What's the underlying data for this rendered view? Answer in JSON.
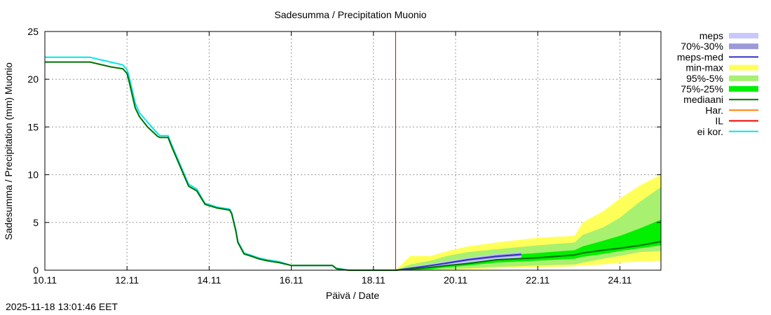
{
  "chart_data": {
    "type": "area",
    "title": "Sadesumma / Precipitation  Muonio",
    "xlabel": "Päivä / Date",
    "ylabel": "Sadesumma / Precipitation (mm)  Muonio",
    "ylim": [
      0,
      25
    ],
    "xlim": [
      0,
      15
    ],
    "yticks": [
      0,
      5,
      10,
      15,
      20,
      25
    ],
    "xticks": [
      {
        "x": 0,
        "label": "10.11"
      },
      {
        "x": 2,
        "label": "12.11"
      },
      {
        "x": 4,
        "label": "14.11"
      },
      {
        "x": 6,
        "label": "16.11"
      },
      {
        "x": 8,
        "label": "18.11"
      },
      {
        "x": 10,
        "label": "20.11"
      },
      {
        "x": 12,
        "label": "22.11"
      },
      {
        "x": 14,
        "label": "24.11"
      }
    ],
    "grid": true,
    "now_x": 8.54,
    "legend": [
      {
        "label": "meps",
        "color": "#c8c8ff",
        "style": "band"
      },
      {
        "label": "70%-30%",
        "color": "#9a9ad8",
        "style": "band"
      },
      {
        "label": "meps-med",
        "color": "#3030c0",
        "style": "line"
      },
      {
        "label": "min-max",
        "color": "#ffff5a",
        "style": "band"
      },
      {
        "label": "95%-5%",
        "color": "#a8f070",
        "style": "band"
      },
      {
        "label": "75%-25%",
        "color": "#00f000",
        "style": "band"
      },
      {
        "label": "mediaani",
        "color": "#007000",
        "style": "line"
      },
      {
        "label": "Har.",
        "color": "#ff8000",
        "style": "line"
      },
      {
        "label": "IL",
        "color": "#ee0000",
        "style": "line"
      },
      {
        "label": "ei kor.",
        "color": "#00e8e8",
        "style": "line"
      }
    ],
    "series": [
      {
        "name": "ei kor.",
        "color": "#00e8e8",
        "x": [
          0,
          1.1,
          1.3,
          1.6,
          1.9,
          2.0,
          2.05,
          2.2,
          2.3,
          2.5,
          2.75,
          2.8,
          3.0,
          3.1,
          3.3,
          3.5,
          3.7,
          3.9,
          4.2,
          4.5,
          4.55,
          4.65,
          4.7,
          4.85,
          5.0,
          5.2,
          5.4,
          5.7,
          6.0,
          7.0,
          7.1,
          7.4,
          8.54
        ],
        "y": [
          22.3,
          22.3,
          22.1,
          21.8,
          21.5,
          21.0,
          20.3,
          17.5,
          16.5,
          15.5,
          14.3,
          14.1,
          14.1,
          13.0,
          11.0,
          9.0,
          8.5,
          7.0,
          6.6,
          6.4,
          6.0,
          4.2,
          3.0,
          1.8,
          1.6,
          1.3,
          1.1,
          0.9,
          0.5,
          0.5,
          0.2,
          0.0,
          0.0
        ]
      },
      {
        "name": "mediaani (obs)",
        "color": "#007000",
        "x": [
          0,
          1.1,
          1.3,
          1.6,
          1.9,
          2.0,
          2.05,
          2.2,
          2.3,
          2.5,
          2.75,
          2.8,
          3.0,
          3.1,
          3.3,
          3.5,
          3.7,
          3.9,
          4.2,
          4.5,
          4.55,
          4.65,
          4.7,
          4.85,
          5.0,
          5.2,
          5.4,
          5.7,
          6.0,
          7.0,
          7.1,
          7.4,
          8.54
        ],
        "y": [
          21.8,
          21.8,
          21.6,
          21.3,
          21.1,
          20.6,
          19.8,
          17.0,
          16.1,
          15.0,
          14.0,
          13.9,
          13.9,
          12.8,
          10.8,
          8.8,
          8.3,
          6.9,
          6.5,
          6.3,
          5.9,
          4.1,
          2.9,
          1.7,
          1.5,
          1.2,
          1.0,
          0.8,
          0.5,
          0.5,
          0.15,
          0.0,
          0.0
        ]
      },
      {
        "name": "min-max",
        "color": "#ffff5a",
        "band": true,
        "x": [
          8.54,
          8.9,
          9.4,
          9.8,
          10.3,
          11.0,
          12.0,
          12.9,
          13.1,
          13.6,
          14.0,
          14.5,
          15.0
        ],
        "upper": [
          0.0,
          1.5,
          1.5,
          2.0,
          2.5,
          2.9,
          3.4,
          3.6,
          5.0,
          6.2,
          7.5,
          8.9,
          10.0
        ],
        "lower": [
          0.0,
          0.0,
          0.0,
          0.0,
          0.1,
          0.2,
          0.3,
          0.4,
          0.5,
          0.6,
          0.8,
          0.9,
          1.0
        ]
      },
      {
        "name": "95%-5%",
        "color": "#a8f070",
        "band": true,
        "x": [
          8.54,
          8.9,
          9.4,
          9.8,
          10.3,
          11.0,
          12.0,
          12.9,
          13.1,
          13.6,
          14.0,
          14.5,
          15.0
        ],
        "upper": [
          0.0,
          0.6,
          1.0,
          1.5,
          1.9,
          2.2,
          2.6,
          2.9,
          3.7,
          4.5,
          5.5,
          7.2,
          8.7
        ],
        "lower": [
          0.0,
          0.0,
          0.05,
          0.1,
          0.2,
          0.35,
          0.5,
          0.6,
          0.8,
          1.2,
          1.5,
          1.9,
          2.0
        ]
      },
      {
        "name": "75%-25%",
        "color": "#00f000",
        "band": true,
        "x": [
          8.54,
          8.9,
          9.4,
          9.8,
          10.3,
          11.0,
          12.0,
          12.9,
          13.1,
          13.6,
          14.0,
          14.5,
          15.0
        ],
        "upper": [
          0.0,
          0.2,
          0.5,
          0.8,
          1.1,
          1.5,
          1.8,
          2.1,
          2.5,
          3.1,
          3.6,
          4.4,
          5.3
        ],
        "lower": [
          0.0,
          0.0,
          0.1,
          0.3,
          0.5,
          0.8,
          1.0,
          1.2,
          1.4,
          1.7,
          2.0,
          2.3,
          2.6
        ]
      },
      {
        "name": "meps",
        "color": "#c8c8ff",
        "band": true,
        "x": [
          8.54,
          8.9,
          9.4,
          9.8,
          10.3,
          11.0,
          11.6
        ],
        "upper": [
          0.0,
          0.35,
          0.65,
          0.95,
          1.3,
          1.7,
          1.9
        ],
        "lower": [
          0.0,
          0.1,
          0.3,
          0.5,
          0.8,
          1.1,
          1.3
        ]
      },
      {
        "name": "70%-30%",
        "color": "#9a9ad8",
        "band": true,
        "x": [
          8.54,
          8.9,
          9.4,
          9.8,
          10.3,
          11.0,
          11.6
        ],
        "upper": [
          0.0,
          0.25,
          0.55,
          0.85,
          1.2,
          1.6,
          1.8
        ],
        "lower": [
          0.0,
          0.15,
          0.4,
          0.65,
          0.95,
          1.3,
          1.5
        ]
      },
      {
        "name": "meps-med",
        "color": "#3030c0",
        "x": [
          8.54,
          8.9,
          9.4,
          9.8,
          10.3,
          11.0,
          11.6
        ],
        "y": [
          0.0,
          0.2,
          0.5,
          0.75,
          1.1,
          1.45,
          1.65
        ]
      },
      {
        "name": "mediaani",
        "color": "#007000",
        "x": [
          8.54,
          8.9,
          9.4,
          9.8,
          10.3,
          11.0,
          12.0,
          12.9,
          13.1,
          13.6,
          14.0,
          14.5,
          15.0
        ],
        "y": [
          0.0,
          0.1,
          0.3,
          0.5,
          0.7,
          1.1,
          1.3,
          1.6,
          1.8,
          2.1,
          2.3,
          2.6,
          3.0
        ]
      }
    ]
  },
  "timestamp": "2025-11-18 13:01:46 EET"
}
